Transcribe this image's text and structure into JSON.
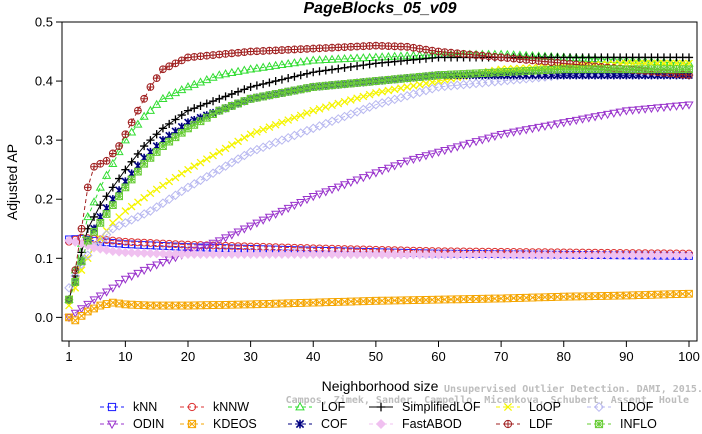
{
  "chart_data": {
    "type": "line",
    "title": "PageBlocks_05_v09",
    "xlabel": "Neighborhood size",
    "ylabel": "Adjusted AP",
    "xlim": [
      1,
      100
    ],
    "ylim": [
      -0.04,
      0.5
    ],
    "x_ticks": [
      1,
      10,
      20,
      30,
      40,
      50,
      60,
      70,
      80,
      90,
      100
    ],
    "y_ticks": [
      0.0,
      0.1,
      0.2,
      0.3,
      0.4,
      0.5
    ],
    "y_tick_labels": [
      "0.0",
      "0.1",
      "0.2",
      "0.3",
      "0.4",
      "0.5"
    ],
    "grid": false,
    "legend_position": "bottom",
    "credit": "Campos, Zimek, Sander, Campello, Micenkova, Schubert, Assent, Houle",
    "credit_line1": "Unsupervised Outlier Detection. DAMI, 2015.",
    "series": [
      {
        "name": "kNN",
        "color": "#1a1aff",
        "marker": "square",
        "dash": "4,3",
        "anchors": [
          [
            1,
            0.132
          ],
          [
            3,
            0.133
          ],
          [
            6,
            0.128
          ],
          [
            10,
            0.124
          ],
          [
            20,
            0.119
          ],
          [
            40,
            0.113
          ],
          [
            60,
            0.108
          ],
          [
            80,
            0.106
          ],
          [
            100,
            0.104
          ]
        ]
      },
      {
        "name": "kNNW",
        "color": "#dd3333",
        "marker": "circle",
        "dash": "4,3",
        "anchors": [
          [
            1,
            0.128
          ],
          [
            3,
            0.135
          ],
          [
            6,
            0.132
          ],
          [
            10,
            0.128
          ],
          [
            20,
            0.123
          ],
          [
            40,
            0.117
          ],
          [
            60,
            0.112
          ],
          [
            80,
            0.11
          ],
          [
            100,
            0.108
          ]
        ]
      },
      {
        "name": "LOF",
        "color": "#33dd33",
        "marker": "triangle-up",
        "dash": "4,3",
        "anchors": [
          [
            1,
            0.03
          ],
          [
            2,
            0.08
          ],
          [
            4,
            0.17
          ],
          [
            6,
            0.22
          ],
          [
            8,
            0.26
          ],
          [
            10,
            0.3
          ],
          [
            13,
            0.34
          ],
          [
            16,
            0.37
          ],
          [
            20,
            0.39
          ],
          [
            25,
            0.41
          ],
          [
            30,
            0.42
          ],
          [
            40,
            0.435
          ],
          [
            50,
            0.44
          ],
          [
            60,
            0.445
          ],
          [
            70,
            0.445
          ],
          [
            80,
            0.44
          ],
          [
            90,
            0.435
          ],
          [
            100,
            0.43
          ]
        ]
      },
      {
        "name": "SimplifiedLOF",
        "color": "#000000",
        "marker": "plus",
        "dash": "",
        "anchors": [
          [
            1,
            0.03
          ],
          [
            2,
            0.07
          ],
          [
            4,
            0.15
          ],
          [
            6,
            0.19
          ],
          [
            8,
            0.22
          ],
          [
            10,
            0.25
          ],
          [
            13,
            0.29
          ],
          [
            16,
            0.32
          ],
          [
            20,
            0.35
          ],
          [
            25,
            0.37
          ],
          [
            30,
            0.39
          ],
          [
            40,
            0.415
          ],
          [
            50,
            0.43
          ],
          [
            60,
            0.44
          ],
          [
            70,
            0.44
          ],
          [
            80,
            0.44
          ],
          [
            90,
            0.44
          ],
          [
            100,
            0.44
          ]
        ]
      },
      {
        "name": "LoOP",
        "color": "#f5f500",
        "marker": "x",
        "dash": "4,3",
        "anchors": [
          [
            1,
            0.02
          ],
          [
            3,
            0.08
          ],
          [
            5,
            0.12
          ],
          [
            8,
            0.16
          ],
          [
            10,
            0.18
          ],
          [
            14,
            0.21
          ],
          [
            20,
            0.25
          ],
          [
            25,
            0.28
          ],
          [
            30,
            0.31
          ],
          [
            40,
            0.35
          ],
          [
            50,
            0.38
          ],
          [
            60,
            0.4
          ],
          [
            70,
            0.42
          ],
          [
            80,
            0.425
          ],
          [
            90,
            0.43
          ],
          [
            100,
            0.43
          ]
        ]
      },
      {
        "name": "LDOF",
        "color": "#b8b8f0",
        "marker": "diamond",
        "dash": "4,3",
        "anchors": [
          [
            1,
            0.05
          ],
          [
            3,
            0.09
          ],
          [
            5,
            0.12
          ],
          [
            8,
            0.15
          ],
          [
            10,
            0.16
          ],
          [
            14,
            0.18
          ],
          [
            20,
            0.22
          ],
          [
            25,
            0.25
          ],
          [
            30,
            0.28
          ],
          [
            40,
            0.32
          ],
          [
            50,
            0.36
          ],
          [
            60,
            0.39
          ],
          [
            70,
            0.4
          ],
          [
            80,
            0.41
          ],
          [
            90,
            0.41
          ],
          [
            100,
            0.41
          ]
        ]
      },
      {
        "name": "ODIN",
        "color": "#9933cc",
        "marker": "triangle-down",
        "dash": "4,3",
        "anchors": [
          [
            1,
            0.0
          ],
          [
            3,
            0.015
          ],
          [
            5,
            0.03
          ],
          [
            8,
            0.05
          ],
          [
            10,
            0.065
          ],
          [
            14,
            0.085
          ],
          [
            20,
            0.11
          ],
          [
            25,
            0.13
          ],
          [
            30,
            0.155
          ],
          [
            35,
            0.18
          ],
          [
            40,
            0.205
          ],
          [
            45,
            0.225
          ],
          [
            50,
            0.245
          ],
          [
            55,
            0.265
          ],
          [
            60,
            0.28
          ],
          [
            65,
            0.295
          ],
          [
            70,
            0.31
          ],
          [
            75,
            0.32
          ],
          [
            80,
            0.33
          ],
          [
            85,
            0.34
          ],
          [
            90,
            0.35
          ],
          [
            95,
            0.355
          ],
          [
            100,
            0.36
          ]
        ]
      },
      {
        "name": "KDEOS",
        "color": "#f5a500",
        "marker": "square-x",
        "dash": "4,3",
        "anchors": [
          [
            1,
            0.0
          ],
          [
            2,
            -0.005
          ],
          [
            4,
            0.01
          ],
          [
            6,
            0.02
          ],
          [
            8,
            0.025
          ],
          [
            10,
            0.022
          ],
          [
            14,
            0.02
          ],
          [
            20,
            0.02
          ],
          [
            30,
            0.022
          ],
          [
            40,
            0.025
          ],
          [
            50,
            0.028
          ],
          [
            60,
            0.03
          ],
          [
            70,
            0.032
          ],
          [
            80,
            0.035
          ],
          [
            90,
            0.037
          ],
          [
            100,
            0.04
          ]
        ]
      },
      {
        "name": "COF",
        "color": "#000080",
        "marker": "asterisk",
        "dash": "4,3",
        "anchors": [
          [
            1,
            0.03
          ],
          [
            2,
            0.06
          ],
          [
            4,
            0.13
          ],
          [
            6,
            0.17
          ],
          [
            8,
            0.2
          ],
          [
            10,
            0.23
          ],
          [
            13,
            0.27
          ],
          [
            16,
            0.3
          ],
          [
            20,
            0.33
          ],
          [
            25,
            0.35
          ],
          [
            30,
            0.37
          ],
          [
            40,
            0.39
          ],
          [
            50,
            0.4
          ],
          [
            60,
            0.41
          ],
          [
            70,
            0.41
          ],
          [
            80,
            0.41
          ],
          [
            90,
            0.41
          ],
          [
            100,
            0.41
          ]
        ]
      },
      {
        "name": "FastABOD",
        "color": "#f0c0f0",
        "marker": "diamond-filled",
        "dash": "4,3",
        "anchors": [
          [
            1,
            0.13
          ],
          [
            3,
            0.125
          ],
          [
            5,
            0.118
          ],
          [
            8,
            0.112
          ],
          [
            10,
            0.11
          ],
          [
            15,
            0.108
          ],
          [
            20,
            0.107
          ],
          [
            30,
            0.107
          ],
          [
            40,
            0.107
          ],
          [
            60,
            0.106
          ],
          [
            80,
            0.105
          ],
          [
            100,
            0.105
          ]
        ]
      },
      {
        "name": "LDF",
        "color": "#a02020",
        "marker": "circle-plus",
        "dash": "4,3",
        "anchors": [
          [
            1,
            0.03
          ],
          [
            2,
            0.08
          ],
          [
            3,
            0.15
          ],
          [
            4,
            0.22
          ],
          [
            5,
            0.255
          ],
          [
            7,
            0.265
          ],
          [
            9,
            0.29
          ],
          [
            10,
            0.31
          ],
          [
            12,
            0.35
          ],
          [
            14,
            0.39
          ],
          [
            16,
            0.42
          ],
          [
            18,
            0.43
          ],
          [
            20,
            0.44
          ],
          [
            25,
            0.445
          ],
          [
            30,
            0.45
          ],
          [
            40,
            0.455
          ],
          [
            50,
            0.46
          ],
          [
            55,
            0.458
          ],
          [
            60,
            0.45
          ],
          [
            70,
            0.44
          ],
          [
            80,
            0.43
          ],
          [
            90,
            0.42
          ],
          [
            100,
            0.41
          ]
        ]
      },
      {
        "name": "INFLO",
        "color": "#66cc33",
        "marker": "square-star",
        "dash": "4,3",
        "anchors": [
          [
            1,
            0.03
          ],
          [
            2,
            0.06
          ],
          [
            4,
            0.13
          ],
          [
            6,
            0.16
          ],
          [
            8,
            0.19
          ],
          [
            10,
            0.22
          ],
          [
            13,
            0.26
          ],
          [
            16,
            0.29
          ],
          [
            20,
            0.32
          ],
          [
            25,
            0.35
          ],
          [
            30,
            0.37
          ],
          [
            40,
            0.39
          ],
          [
            50,
            0.4
          ],
          [
            60,
            0.41
          ],
          [
            70,
            0.415
          ],
          [
            80,
            0.42
          ],
          [
            90,
            0.42
          ],
          [
            100,
            0.42
          ]
        ]
      }
    ],
    "legend_rows": [
      [
        "kNN",
        "kNNW",
        "LOF",
        "SimplifiedLOF",
        "LoOP",
        "LDOF"
      ],
      [
        "ODIN",
        "KDEOS",
        "COF",
        "FastABOD",
        "LDF",
        "INFLO"
      ]
    ]
  }
}
